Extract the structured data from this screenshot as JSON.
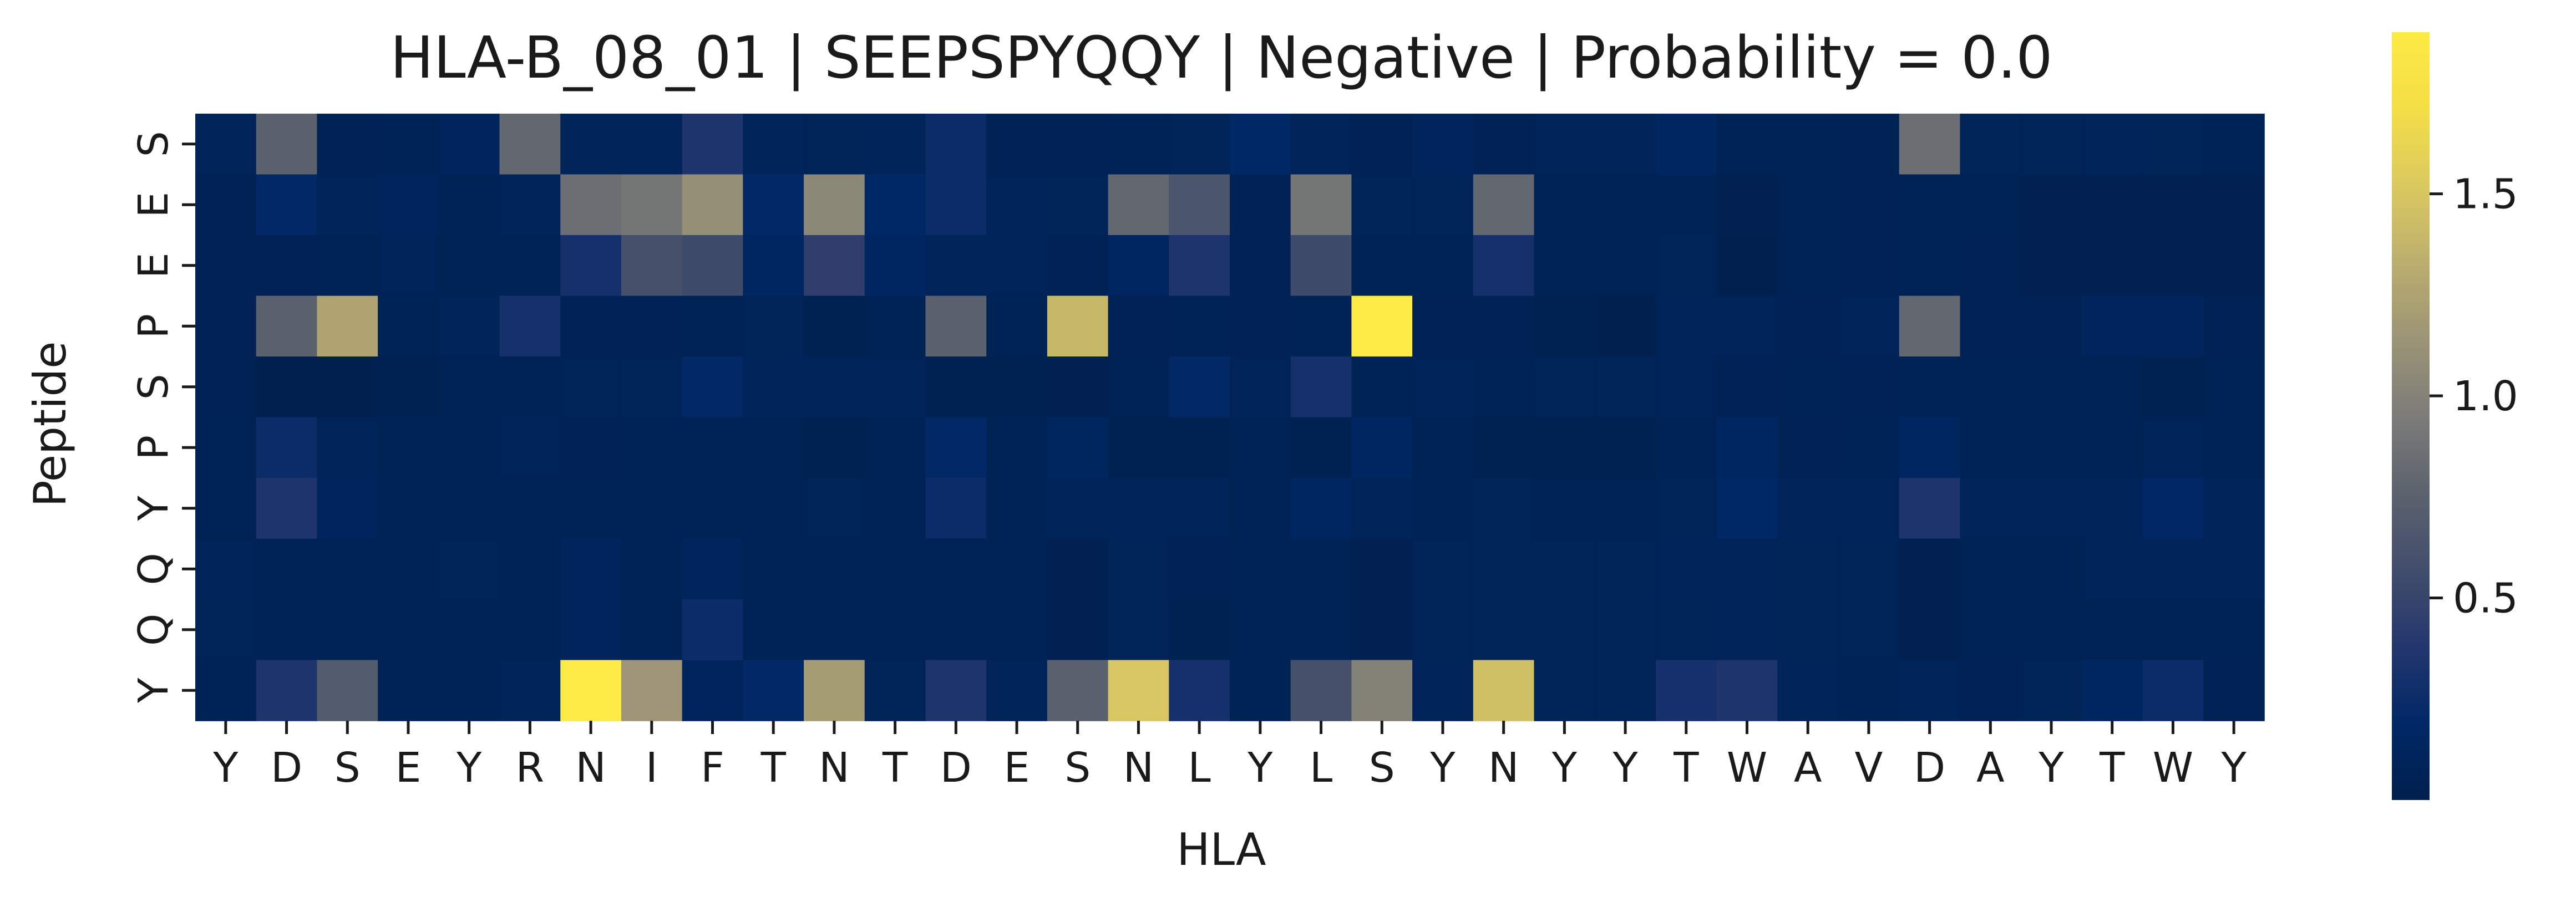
{
  "chart_data": {
    "type": "heatmap",
    "title": "HLA-B_08_01 | SEEPSPYQQY | Negative | Probability = 0.0",
    "xlabel": "HLA",
    "ylabel": "Peptide",
    "x_categories": [
      "Y",
      "D",
      "S",
      "E",
      "Y",
      "R",
      "N",
      "I",
      "F",
      "T",
      "N",
      "T",
      "D",
      "E",
      "S",
      "N",
      "L",
      "Y",
      "L",
      "S",
      "Y",
      "N",
      "Y",
      "Y",
      "T",
      "W",
      "A",
      "V",
      "D",
      "A",
      "Y",
      "T",
      "W",
      "Y"
    ],
    "y_categories": [
      "S",
      "E",
      "E",
      "P",
      "S",
      "P",
      "Y",
      "Q",
      "Q",
      "Y"
    ],
    "values": [
      [
        0.1,
        0.75,
        0.05,
        0.07,
        0.12,
        0.8,
        0.1,
        0.1,
        0.35,
        0.1,
        0.08,
        0.1,
        0.25,
        0.05,
        0.05,
        0.07,
        0.08,
        0.18,
        0.1,
        0.05,
        0.12,
        0.05,
        0.1,
        0.1,
        0.15,
        0.07,
        0.07,
        0.05,
        0.85,
        0.08,
        0.08,
        0.1,
        0.08,
        0.07
      ],
      [
        0.05,
        0.2,
        0.1,
        0.12,
        0.07,
        0.1,
        0.85,
        0.9,
        1.1,
        0.2,
        1.05,
        0.18,
        0.25,
        0.1,
        0.08,
        0.8,
        0.65,
        0.05,
        0.9,
        0.08,
        0.08,
        0.8,
        0.07,
        0.07,
        0.06,
        0.03,
        0.06,
        0.05,
        0.06,
        0.06,
        0.03,
        0.03,
        0.03,
        0.03
      ],
      [
        0.05,
        0.05,
        0.06,
        0.1,
        0.07,
        0.07,
        0.3,
        0.6,
        0.55,
        0.15,
        0.45,
        0.15,
        0.1,
        0.1,
        0.05,
        0.15,
        0.35,
        0.05,
        0.55,
        0.07,
        0.07,
        0.3,
        0.07,
        0.07,
        0.08,
        0.02,
        0.07,
        0.05,
        0.06,
        0.05,
        0.03,
        0.03,
        0.03,
        0.03
      ],
      [
        0.05,
        0.75,
        1.25,
        0.07,
        0.1,
        0.3,
        0.05,
        0.05,
        0.07,
        0.08,
        0.04,
        0.07,
        0.75,
        0.07,
        1.4,
        0.05,
        0.07,
        0.05,
        0.07,
        1.9,
        0.05,
        0.05,
        0.04,
        0.02,
        0.1,
        0.1,
        0.05,
        0.1,
        0.8,
        0.05,
        0.05,
        0.12,
        0.12,
        0.05
      ],
      [
        0.05,
        0.02,
        0.02,
        0.04,
        0.06,
        0.06,
        0.08,
        0.08,
        0.2,
        0.1,
        0.1,
        0.1,
        0.04,
        0.04,
        0.03,
        0.07,
        0.2,
        0.1,
        0.3,
        0.06,
        0.1,
        0.06,
        0.08,
        0.08,
        0.1,
        0.05,
        0.06,
        0.05,
        0.06,
        0.07,
        0.07,
        0.06,
        0.04,
        0.06
      ],
      [
        0.07,
        0.25,
        0.1,
        0.07,
        0.07,
        0.1,
        0.05,
        0.07,
        0.07,
        0.07,
        0.04,
        0.07,
        0.2,
        0.07,
        0.14,
        0.04,
        0.04,
        0.06,
        0.04,
        0.15,
        0.06,
        0.04,
        0.04,
        0.04,
        0.07,
        0.15,
        0.05,
        0.07,
        0.15,
        0.07,
        0.07,
        0.07,
        0.09,
        0.07
      ],
      [
        0.07,
        0.35,
        0.12,
        0.07,
        0.07,
        0.07,
        0.07,
        0.07,
        0.07,
        0.07,
        0.08,
        0.07,
        0.25,
        0.07,
        0.1,
        0.1,
        0.1,
        0.07,
        0.15,
        0.1,
        0.07,
        0.08,
        0.07,
        0.07,
        0.08,
        0.18,
        0.1,
        0.1,
        0.35,
        0.1,
        0.1,
        0.1,
        0.17,
        0.1
      ],
      [
        0.1,
        0.06,
        0.06,
        0.06,
        0.08,
        0.06,
        0.12,
        0.06,
        0.12,
        0.06,
        0.06,
        0.06,
        0.06,
        0.06,
        0.03,
        0.08,
        0.05,
        0.07,
        0.06,
        0.03,
        0.08,
        0.08,
        0.08,
        0.08,
        0.1,
        0.1,
        0.08,
        0.08,
        0.03,
        0.06,
        0.06,
        0.1,
        0.1,
        0.1
      ],
      [
        0.08,
        0.06,
        0.06,
        0.06,
        0.06,
        0.06,
        0.12,
        0.06,
        0.25,
        0.06,
        0.06,
        0.06,
        0.06,
        0.06,
        0.03,
        0.08,
        0.04,
        0.06,
        0.06,
        0.03,
        0.08,
        0.08,
        0.08,
        0.08,
        0.08,
        0.1,
        0.08,
        0.08,
        0.03,
        0.07,
        0.07,
        0.07,
        0.07,
        0.07
      ],
      [
        0.06,
        0.35,
        0.7,
        0.06,
        0.06,
        0.1,
        1.9,
        1.15,
        0.12,
        0.2,
        1.2,
        0.08,
        0.35,
        0.1,
        0.75,
        1.5,
        0.3,
        0.06,
        0.6,
        1.0,
        0.1,
        1.45,
        0.08,
        0.08,
        0.3,
        0.35,
        0.1,
        0.06,
        0.1,
        0.05,
        0.08,
        0.15,
        0.25,
        0.05
      ]
    ],
    "colormap": "cividis",
    "vmin": 0.0,
    "vmax": 1.9,
    "colorbar_ticks": [
      0.5,
      1.0,
      1.5
    ],
    "colorbar_tick_labels": [
      "0.5",
      "1.0",
      "1.5"
    ],
    "grid": false
  }
}
